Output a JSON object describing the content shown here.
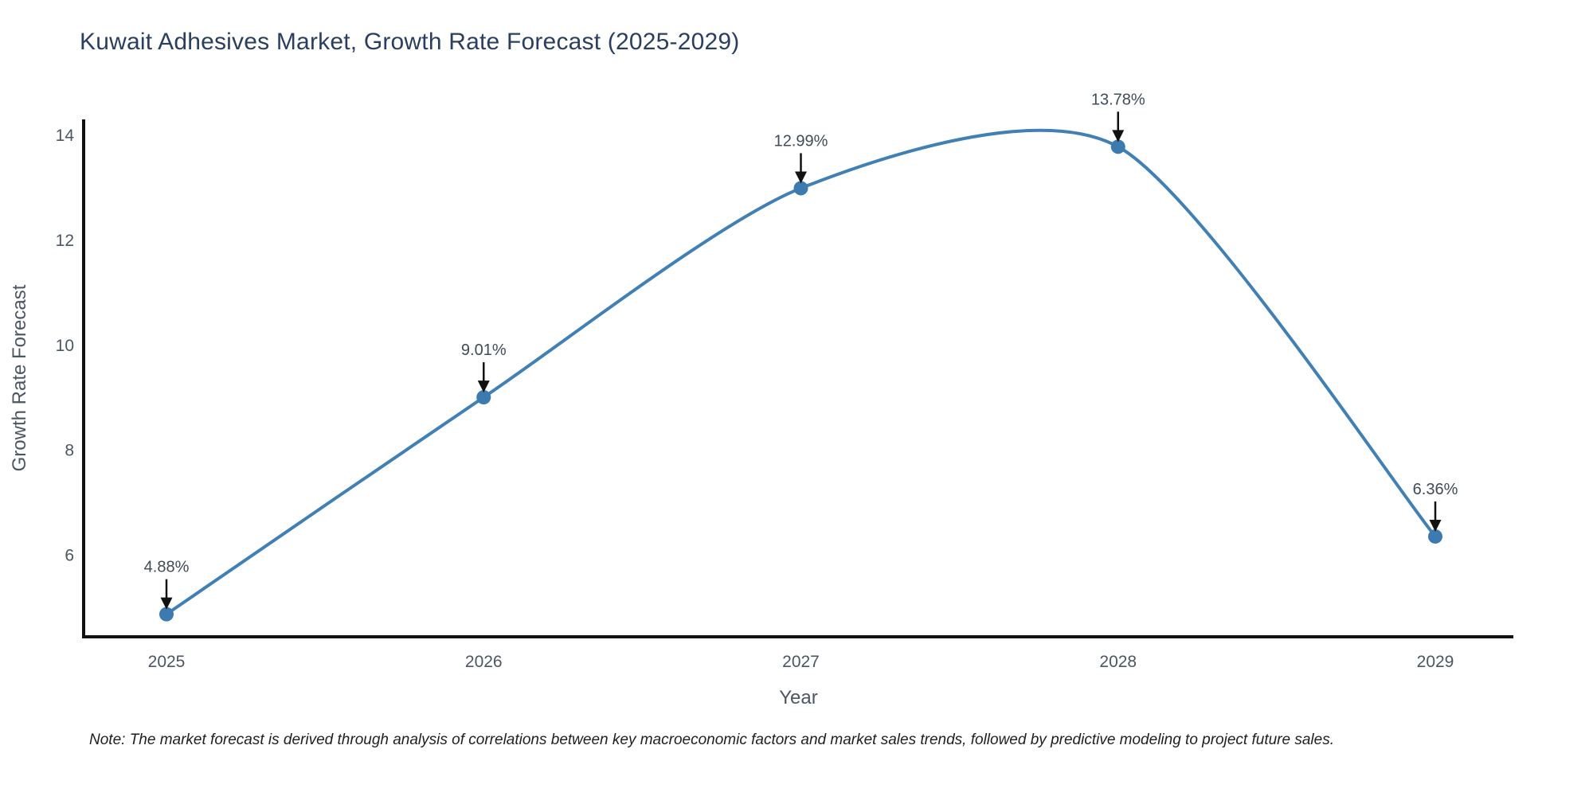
{
  "chart_data": {
    "type": "line",
    "title": "Kuwait Adhesives Market, Growth Rate Forecast (2025-2029)",
    "xlabel": "Year",
    "ylabel": "Growth Rate Forecast",
    "categories": [
      "2025",
      "2026",
      "2027",
      "2028",
      "2029"
    ],
    "x": [
      2025,
      2026,
      2027,
      2028,
      2029
    ],
    "y": [
      4.88,
      9.01,
      12.99,
      13.78,
      6.36
    ],
    "point_labels": [
      "4.88%",
      "9.01%",
      "12.99%",
      "13.78%",
      "6.36%"
    ],
    "y_ticks": [
      6,
      8,
      10,
      12,
      14
    ],
    "ylim": [
      4.45,
      14.3
    ],
    "line_shape": "spline",
    "grid": false,
    "legend": "none",
    "colors": {
      "line": "#4080b5",
      "marker": "#3c7ab0",
      "axis": "#111111",
      "tick_label": "#4c5662",
      "axis_title": "#4c5662",
      "title": "#2a3f5f",
      "annotation_text": "#3f4b57",
      "annotation_arrow": "#111111",
      "background": "#ffffff"
    }
  },
  "note": "Note: The market forecast is derived through analysis of correlations between key macroeconomic factors and market sales trends, followed by predictive modeling to project future sales."
}
